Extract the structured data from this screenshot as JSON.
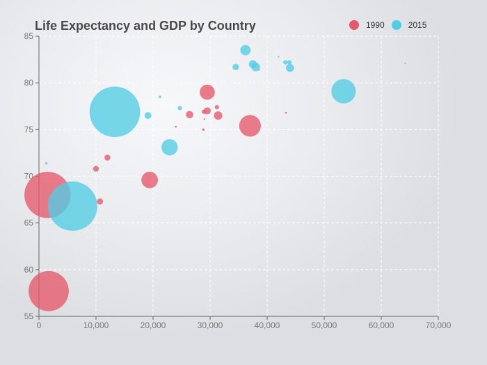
{
  "colors": {
    "series_1990": "#e6586a",
    "series_2015": "#52cde4",
    "axis": "#666666",
    "grid": "#ffffff"
  },
  "chart_data": {
    "type": "scatter",
    "title": "Life Expectancy and GDP by Country",
    "xlabel": "",
    "ylabel": "",
    "xlim": [
      0,
      70000
    ],
    "ylim": [
      55,
      85
    ],
    "xticks": [
      0,
      10000,
      20000,
      30000,
      40000,
      50000,
      60000,
      70000
    ],
    "xtick_labels": [
      "0",
      "10,000",
      "20,000",
      "30,000",
      "40,000",
      "50,000",
      "60,000",
      "70,000"
    ],
    "yticks": [
      55,
      60,
      65,
      70,
      75,
      80,
      85
    ],
    "ytick_labels": [
      "55",
      "60",
      "65",
      "70",
      "75",
      "80",
      "85"
    ],
    "grid": true,
    "legend_position": "top-right",
    "bubble_size_field": "population",
    "series": [
      {
        "name": "1990",
        "color": "#e6586a",
        "points": [
          {
            "x": 1500,
            "y": 68.0,
            "population": 1150000000
          },
          {
            "x": 1700,
            "y": 57.7,
            "population": 870000000
          },
          {
            "x": 10000,
            "y": 70.8,
            "population": 18000000
          },
          {
            "x": 10700,
            "y": 67.3,
            "population": 20000000
          },
          {
            "x": 12000,
            "y": 72.0,
            "population": 19000000
          },
          {
            "x": 19400,
            "y": 69.6,
            "population": 148000000
          },
          {
            "x": 24000,
            "y": 75.3,
            "population": 2000000
          },
          {
            "x": 26400,
            "y": 76.6,
            "population": 29000000
          },
          {
            "x": 28800,
            "y": 75.0,
            "population": 3000000
          },
          {
            "x": 28900,
            "y": 76.9,
            "population": 10000000
          },
          {
            "x": 29000,
            "y": 76.1,
            "population": 1000000
          },
          {
            "x": 29500,
            "y": 79.0,
            "population": 123000000
          },
          {
            "x": 29500,
            "y": 77.0,
            "population": 27000000
          },
          {
            "x": 31200,
            "y": 77.4,
            "population": 10000000
          },
          {
            "x": 31400,
            "y": 76.5,
            "population": 38000000
          },
          {
            "x": 37000,
            "y": 75.4,
            "population": 252000000
          },
          {
            "x": 43300,
            "y": 76.8,
            "population": 2000000
          }
        ]
      },
      {
        "name": "2015",
        "color": "#52cde4",
        "points": [
          {
            "x": 1300,
            "y": 71.4,
            "population": 3000000
          },
          {
            "x": 5900,
            "y": 66.8,
            "population": 1311000000
          },
          {
            "x": 13300,
            "y": 76.9,
            "population": 1371000000
          },
          {
            "x": 19100,
            "y": 76.5,
            "population": 25000000
          },
          {
            "x": 21200,
            "y": 78.5,
            "population": 4000000
          },
          {
            "x": 22900,
            "y": 73.1,
            "population": 144000000
          },
          {
            "x": 24700,
            "y": 77.3,
            "population": 10000000
          },
          {
            "x": 34500,
            "y": 81.7,
            "population": 23000000
          },
          {
            "x": 36200,
            "y": 83.5,
            "population": 58000000
          },
          {
            "x": 37500,
            "y": 82.0,
            "population": 35000000
          },
          {
            "x": 38000,
            "y": 81.7,
            "population": 40000000
          },
          {
            "x": 38600,
            "y": 81.4,
            "population": 2000000
          },
          {
            "x": 42000,
            "y": 82.8,
            "population": 500000
          },
          {
            "x": 43200,
            "y": 82.2,
            "population": 10000000
          },
          {
            "x": 43900,
            "y": 82.2,
            "population": 10000000
          },
          {
            "x": 44000,
            "y": 81.6,
            "population": 35000000
          },
          {
            "x": 53400,
            "y": 79.1,
            "population": 320000000
          },
          {
            "x": 64200,
            "y": 82.1,
            "population": 1000000
          }
        ]
      }
    ]
  }
}
